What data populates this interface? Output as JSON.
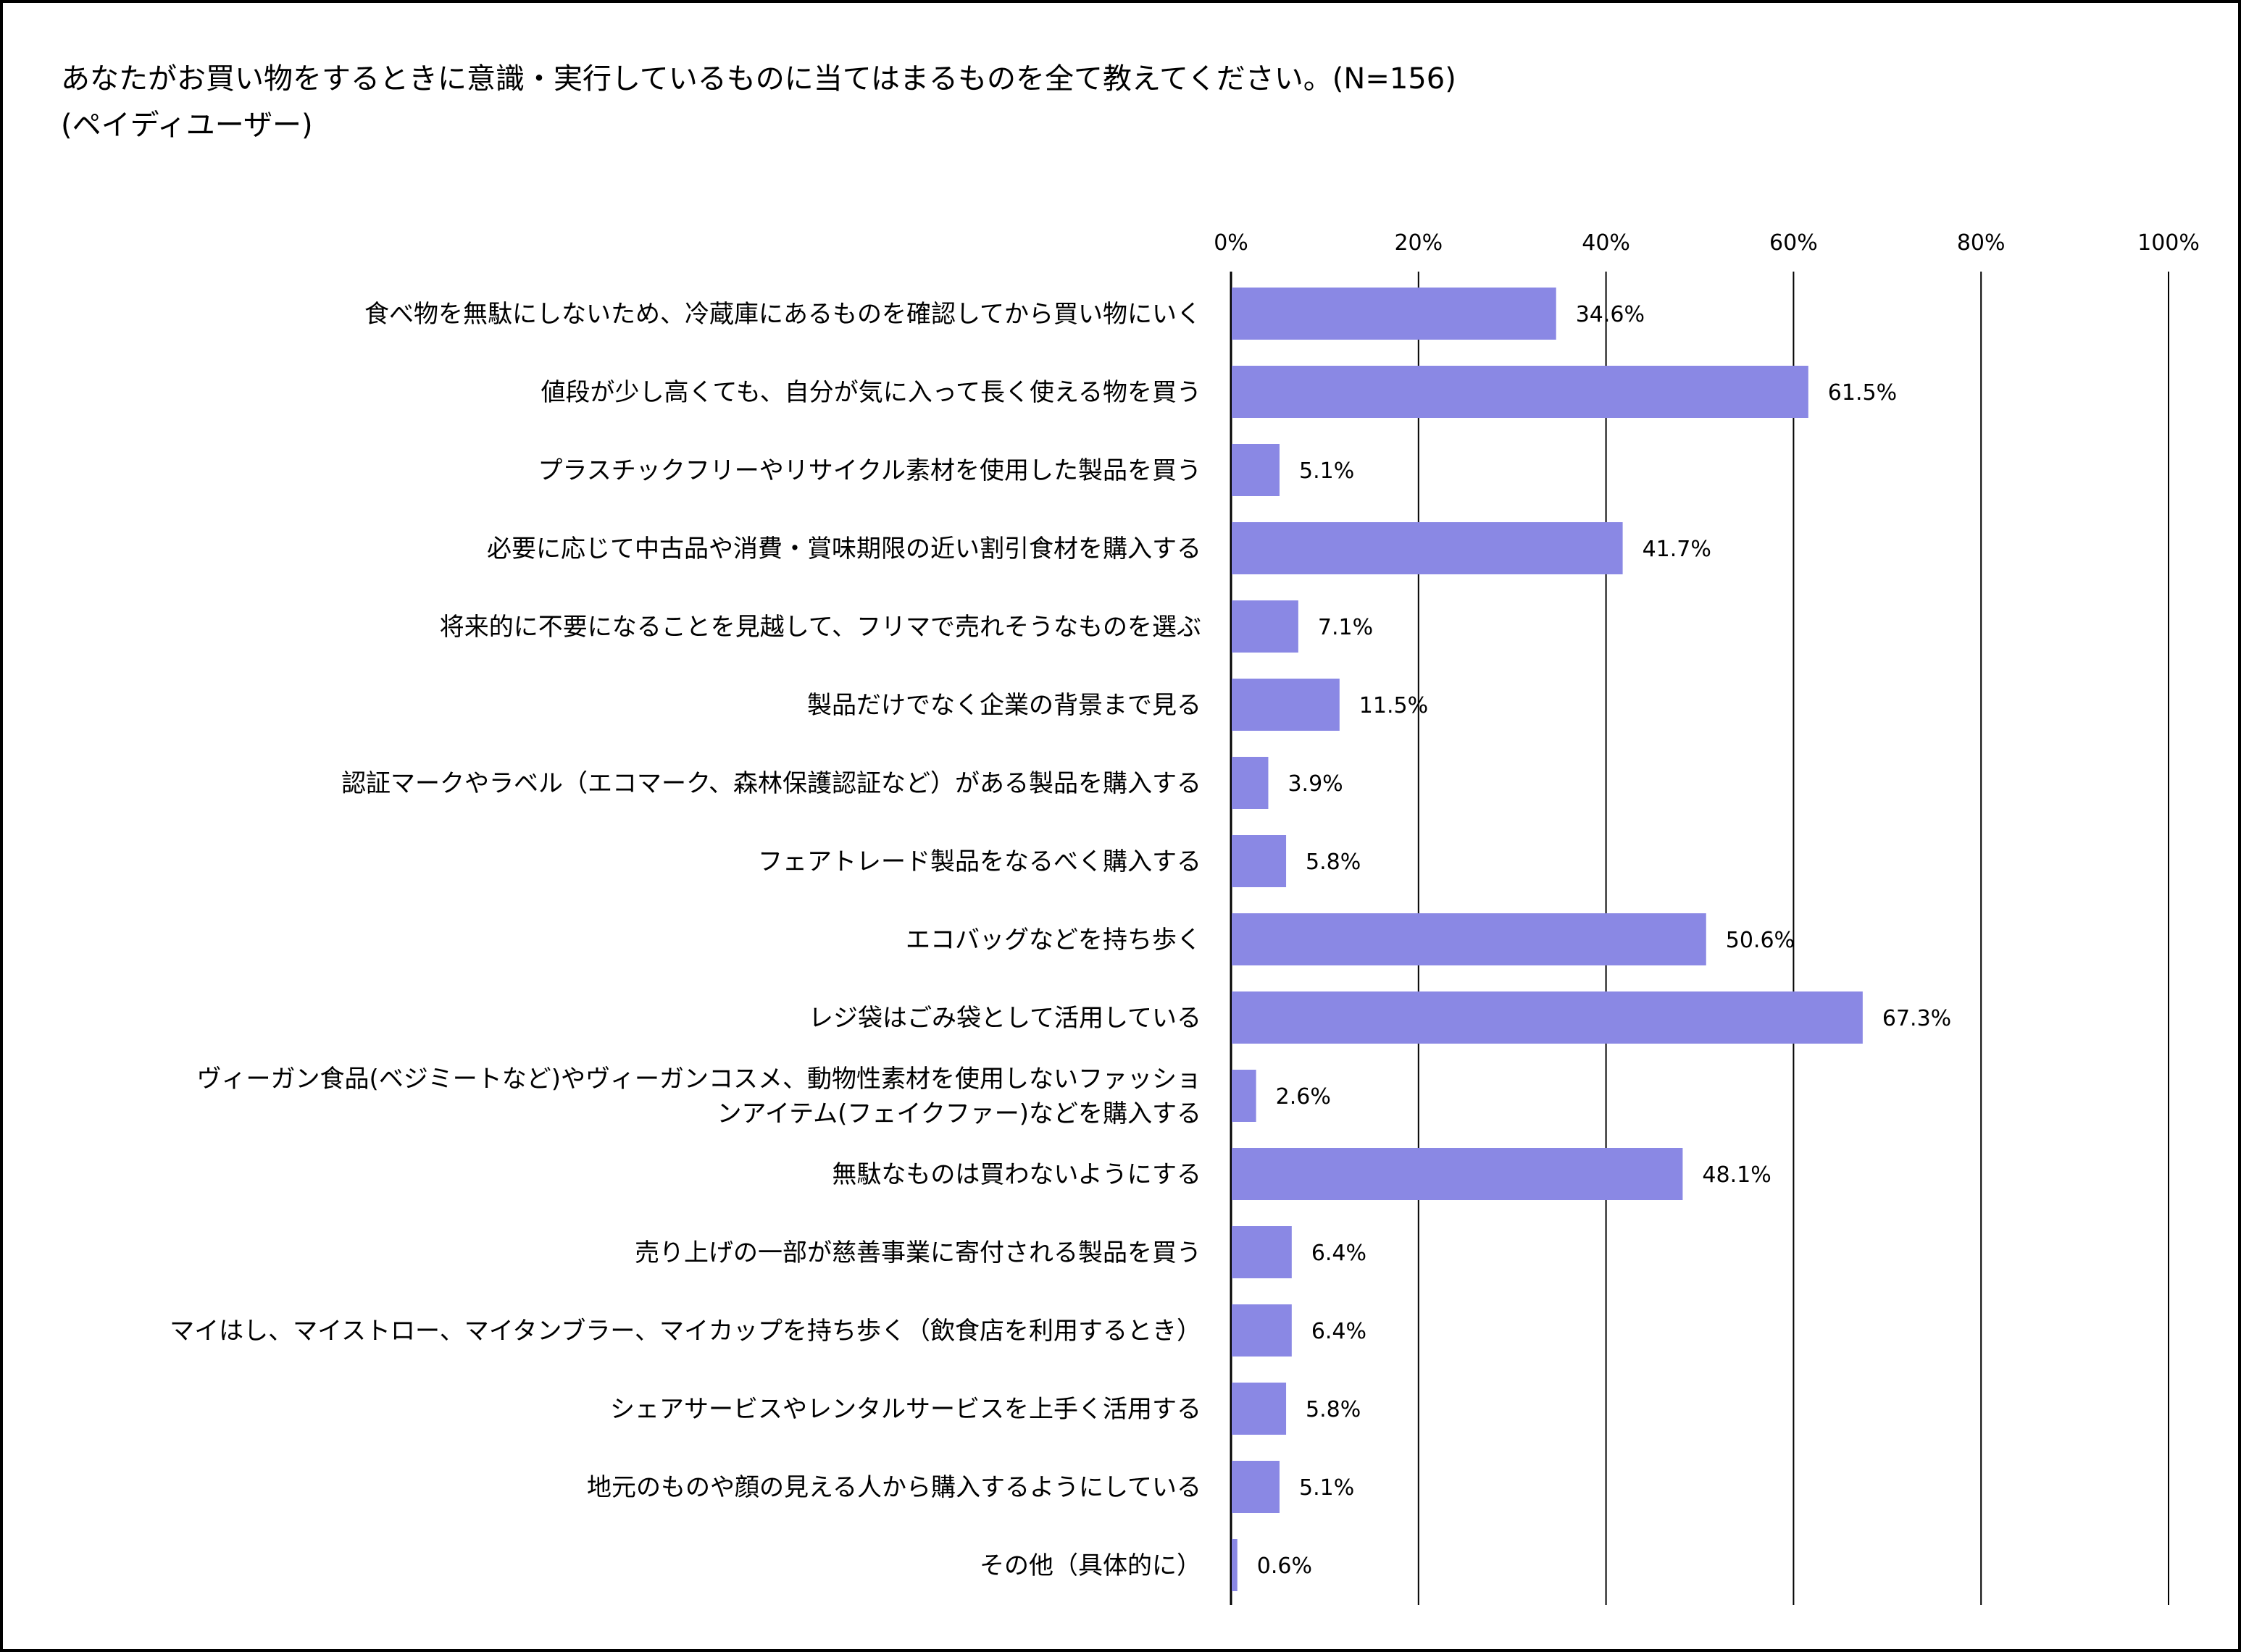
{
  "title": "あなたがお買い物をするときに意識・実行しているものに当てはまるものを全て教えてください。(N=156)",
  "subtitle": "(ペイディユーザー)",
  "colors": {
    "bar": "#8a88e4",
    "grid": "#000000",
    "text": "#000000"
  },
  "chart_data": {
    "type": "bar",
    "orientation": "horizontal",
    "title": "あなたがお買い物をするときに意識・実行しているものに当てはまるものを全て教えてください。(N=156)",
    "subtitle": "(ペイディユーザー)",
    "xlim": [
      0,
      100
    ],
    "ticks": [
      0,
      20,
      40,
      60,
      80,
      100
    ],
    "tick_labels": [
      "0%",
      "20%",
      "40%",
      "60%",
      "80%",
      "100%"
    ],
    "grid": true,
    "categories": [
      [
        "食べ物を無駄にしないため、冷蔵庫にあるものを確認してから買い物にいく"
      ],
      [
        "値段が少し高くても、自分が気に入って長く使える物を買う"
      ],
      [
        "プラスチックフリーやリサイクル素材を使用した製品を買う"
      ],
      [
        "必要に応じて中古品や消費・賞味期限の近い割引食材を購入する"
      ],
      [
        "将来的に不要になることを見越して、フリマで売れそうなものを選ぶ"
      ],
      [
        "製品だけでなく企業の背景まで見る"
      ],
      [
        "認証マークやラベル（エコマーク、森林保護認証など）がある製品を購入する"
      ],
      [
        "フェアトレード製品をなるべく購入する"
      ],
      [
        "エコバッグなどを持ち歩く"
      ],
      [
        "レジ袋はごみ袋として活用している"
      ],
      [
        "ヴィーガン食品(ベジミートなど)やヴィーガンコスメ、動物性素材を使用しないファッショ",
        "ンアイテム(フェイクファー)などを購入する"
      ],
      [
        "無駄なものは買わないようにする"
      ],
      [
        "売り上げの一部が慈善事業に寄付される製品を買う"
      ],
      [
        "マイはし、マイストロー、マイタンブラー、マイカップを持ち歩く（飲食店を利用するとき）"
      ],
      [
        "シェアサービスやレンタルサービスを上手く活用する"
      ],
      [
        "地元のものや顔の見える人から購入するようにしている"
      ],
      [
        "その他（具体的に）"
      ]
    ],
    "values": [
      34.6,
      61.5,
      5.1,
      41.7,
      7.1,
      11.5,
      3.9,
      5.8,
      50.6,
      67.3,
      2.6,
      48.1,
      6.4,
      6.4,
      5.8,
      5.1,
      0.6
    ],
    "value_labels": [
      "34.6%",
      "61.5%",
      "5.1%",
      "41.7%",
      "7.1%",
      "11.5%",
      "3.9%",
      "5.8%",
      "50.6%",
      "67.3%",
      "2.6%",
      "48.1%",
      "6.4%",
      "6.4%",
      "5.8%",
      "5.1%",
      "0.6%"
    ]
  }
}
